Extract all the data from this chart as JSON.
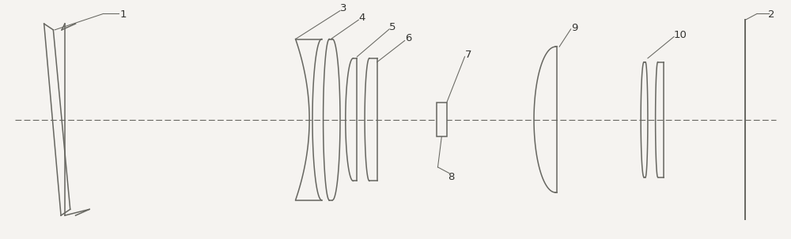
{
  "fig_width": 10.0,
  "fig_height": 3.03,
  "dpi": 100,
  "bg_color": "#f5f3f0",
  "line_color": "#666660",
  "xlim": [
    -5.0,
    5.0
  ],
  "ylim": [
    -1.55,
    1.55
  ],
  "optical_axis_y": 0.0,
  "label_fontsize": 9.5,
  "label_color": "#333330"
}
